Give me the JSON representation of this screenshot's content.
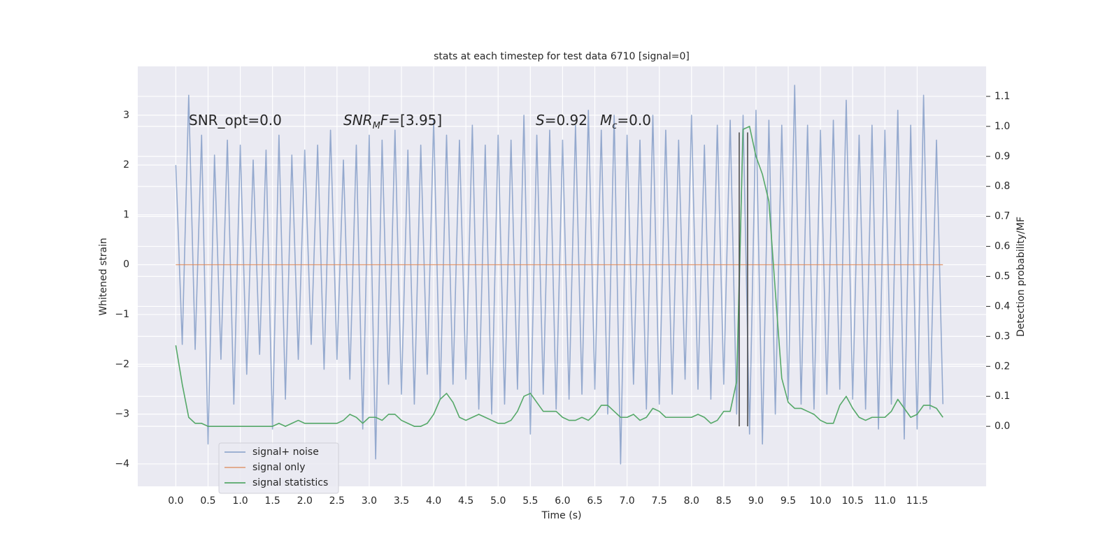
{
  "chart_data": {
    "type": "line",
    "title": "stats at each timestep for test data 6710 [signal=0]",
    "xlabel": "Time (s)",
    "ylabel": "Whitened strain",
    "y2label": "Detection probability/MF",
    "background": "#eaeaf2",
    "grid": true,
    "legend": "lower left",
    "xlim": [
      -0.59,
      12.57
    ],
    "ylim": [
      -4.45,
      3.98
    ],
    "y2lim": [
      -0.2,
      1.2
    ],
    "xticks": [
      {
        "value": 0,
        "label": "0.0"
      },
      {
        "value": 0.5,
        "label": "0.5"
      },
      {
        "value": 1,
        "label": "1.0"
      },
      {
        "value": 1.5,
        "label": "1.5"
      },
      {
        "value": 2,
        "label": "2.0"
      },
      {
        "value": 2.5,
        "label": "2.5"
      },
      {
        "value": 3,
        "label": "3.0"
      },
      {
        "value": 3.5,
        "label": "3.5"
      },
      {
        "value": 4,
        "label": "4.0"
      },
      {
        "value": 4.5,
        "label": "4.5"
      },
      {
        "value": 5,
        "label": "5.0"
      },
      {
        "value": 5.5,
        "label": "5.5"
      },
      {
        "value": 6,
        "label": "6.0"
      },
      {
        "value": 6.5,
        "label": "6.5"
      },
      {
        "value": 7,
        "label": "7.0"
      },
      {
        "value": 7.5,
        "label": "7.5"
      },
      {
        "value": 8,
        "label": "8.0"
      },
      {
        "value": 8.5,
        "label": "8.5"
      },
      {
        "value": 9,
        "label": "9.0"
      },
      {
        "value": 9.5,
        "label": "9.5"
      },
      {
        "value": 10,
        "label": "10.0"
      },
      {
        "value": 10.5,
        "label": "10.5"
      },
      {
        "value": 11,
        "label": "11.0"
      },
      {
        "value": 11.5,
        "label": "11.5"
      }
    ],
    "yticks": [
      {
        "value": -4,
        "label": "−4"
      },
      {
        "value": -3,
        "label": "−3"
      },
      {
        "value": -2,
        "label": "−2"
      },
      {
        "value": -1,
        "label": "−1"
      },
      0,
      1,
      2,
      3
    ],
    "y2ticks": [
      {
        "value": 0,
        "label": "0.0"
      },
      {
        "value": 0.1,
        "label": "0.1"
      },
      {
        "value": 0.2,
        "label": "0.2"
      },
      {
        "value": 0.3,
        "label": "0.3"
      },
      {
        "value": 0.4,
        "label": "0.4"
      },
      {
        "value": 0.5,
        "label": "0.5"
      },
      {
        "value": 0.6,
        "label": "0.6"
      },
      {
        "value": 0.7,
        "label": "0.7"
      },
      {
        "value": 0.8,
        "label": "0.8"
      },
      {
        "value": 0.9,
        "label": "0.9"
      },
      {
        "value": 1.0,
        "label": "1.0"
      },
      {
        "value": 1.1,
        "label": "1.1"
      }
    ],
    "x": [
      0,
      0.1,
      0.2,
      0.3,
      0.4,
      0.5,
      0.6,
      0.7,
      0.8,
      0.9,
      1,
      1.1,
      1.2,
      1.3,
      1.4,
      1.5,
      1.6,
      1.7,
      1.8,
      1.9,
      2,
      2.1,
      2.2,
      2.3,
      2.4,
      2.5,
      2.6,
      2.7,
      2.8,
      2.9,
      3,
      3.1,
      3.2,
      3.3,
      3.4,
      3.5,
      3.6,
      3.7,
      3.8,
      3.9,
      4,
      4.1,
      4.2,
      4.3,
      4.4,
      4.5,
      4.6,
      4.7,
      4.8,
      4.9,
      5,
      5.1,
      5.2,
      5.3,
      5.4,
      5.5,
      5.6,
      5.7,
      5.8,
      5.9,
      6,
      6.1,
      6.2,
      6.3,
      6.4,
      6.5,
      6.6,
      6.7,
      6.8,
      6.9,
      7,
      7.1,
      7.2,
      7.3,
      7.4,
      7.5,
      7.6,
      7.7,
      7.8,
      7.9,
      8,
      8.1,
      8.2,
      8.3,
      8.4,
      8.5,
      8.6,
      8.7,
      8.8,
      8.9,
      9,
      9.1,
      9.2,
      9.3,
      9.4,
      9.5,
      9.6,
      9.7,
      9.8,
      9.9,
      10,
      10.1,
      10.2,
      10.3,
      10.4,
      10.5,
      10.6,
      10.7,
      10.8,
      10.9,
      11,
      11.1,
      11.2,
      11.3,
      11.4,
      11.5,
      11.6,
      11.7,
      11.8,
      11.9
    ],
    "series": [
      {
        "name": "signal+ noise",
        "color": "#4c72b0",
        "opacity": 0.55,
        "axis": "y",
        "values": [
          2.0,
          -1.6,
          3.4,
          -1.7,
          2.6,
          -3.6,
          2.2,
          -1.9,
          2.5,
          -2.8,
          2.4,
          -2.2,
          2.1,
          -1.8,
          2.3,
          -3.3,
          2.6,
          -2.7,
          2.2,
          -1.9,
          2.3,
          -1.6,
          2.4,
          -2.1,
          2.7,
          -1.9,
          2.1,
          -2.3,
          2.4,
          -3.3,
          2.6,
          -3.9,
          2.5,
          -2.4,
          2.7,
          -2.6,
          2.3,
          -2.8,
          2.4,
          -2.2,
          2.9,
          -2.7,
          2.6,
          -2.4,
          2.5,
          -2.3,
          2.8,
          -2.9,
          2.4,
          -3.0,
          2.6,
          -2.8,
          2.5,
          -2.5,
          3.0,
          -3.4,
          2.6,
          -2.6,
          2.7,
          -2.9,
          2.5,
          -2.7,
          2.8,
          -2.6,
          3.1,
          -2.5,
          2.7,
          -3.0,
          3.0,
          -4.0,
          2.6,
          -2.4,
          2.5,
          -2.9,
          3.0,
          -2.8,
          2.7,
          -2.6,
          2.5,
          -2.3,
          3.0,
          -2.5,
          2.4,
          -2.7,
          2.8,
          -2.4,
          2.9,
          -3.0,
          3.0,
          -3.4,
          3.1,
          -3.6,
          2.9,
          -3.0,
          2.8,
          -2.7,
          3.6,
          -2.8,
          2.8,
          -2.9,
          2.7,
          -2.6,
          2.9,
          -2.5,
          3.3,
          -2.7,
          2.6,
          -2.9,
          2.8,
          -3.3,
          2.7,
          -2.8,
          3.1,
          -3.5,
          2.8,
          -3.3,
          3.4,
          -2.9,
          2.5,
          -2.8
        ]
      },
      {
        "name": "signal only",
        "color": "#dd8452",
        "opacity": 0.7,
        "axis": "y",
        "values": [
          0,
          0,
          0,
          0,
          0,
          0,
          0,
          0,
          0,
          0,
          0,
          0,
          0,
          0,
          0,
          0,
          0,
          0,
          0,
          0,
          0,
          0,
          0,
          0,
          0,
          0,
          0,
          0,
          0,
          0,
          0,
          0,
          0,
          0,
          0,
          0,
          0,
          0,
          0,
          0,
          0,
          0,
          0,
          0,
          0,
          0,
          0,
          0,
          0,
          0,
          0,
          0,
          0,
          0,
          0,
          0,
          0,
          0,
          0,
          0,
          0,
          0,
          0,
          0,
          0,
          0,
          0,
          0,
          0,
          0,
          0,
          0,
          0,
          0,
          0,
          0,
          0,
          0,
          0,
          0,
          0,
          0,
          0,
          0,
          0,
          0,
          0,
          0,
          0,
          0,
          0,
          0,
          0,
          0,
          0,
          0,
          0,
          0,
          0,
          0,
          0,
          0,
          0,
          0,
          0,
          0,
          0,
          0,
          0,
          0,
          0,
          0,
          0,
          0,
          0,
          0,
          0,
          0,
          0,
          0
        ]
      },
      {
        "name": "signal statistics",
        "color": "#55a868",
        "opacity": 1,
        "axis": "y2",
        "values": [
          0.27,
          0.14,
          0.03,
          0.01,
          0.01,
          0.0,
          0.0,
          0.0,
          0.0,
          0.0,
          0.0,
          0.0,
          0.0,
          0.0,
          0.0,
          0.0,
          0.01,
          0.0,
          0.01,
          0.02,
          0.01,
          0.01,
          0.01,
          0.01,
          0.01,
          0.01,
          0.02,
          0.04,
          0.03,
          0.01,
          0.03,
          0.03,
          0.02,
          0.04,
          0.04,
          0.02,
          0.01,
          0.0,
          0.0,
          0.01,
          0.04,
          0.09,
          0.11,
          0.08,
          0.03,
          0.02,
          0.03,
          0.04,
          0.03,
          0.02,
          0.01,
          0.01,
          0.02,
          0.05,
          0.1,
          0.11,
          0.08,
          0.05,
          0.05,
          0.05,
          0.03,
          0.02,
          0.02,
          0.03,
          0.02,
          0.04,
          0.07,
          0.07,
          0.05,
          0.03,
          0.03,
          0.04,
          0.02,
          0.03,
          0.06,
          0.05,
          0.03,
          0.03,
          0.03,
          0.03,
          0.03,
          0.04,
          0.03,
          0.01,
          0.02,
          0.05,
          0.05,
          0.15,
          0.99,
          1.0,
          0.9,
          0.84,
          0.75,
          0.45,
          0.16,
          0.08,
          0.06,
          0.06,
          0.05,
          0.04,
          0.02,
          0.01,
          0.01,
          0.07,
          0.1,
          0.06,
          0.03,
          0.02,
          0.03,
          0.03,
          0.03,
          0.05,
          0.09,
          0.06,
          0.03,
          0.04,
          0.07,
          0.07,
          0.06,
          0.03
        ]
      }
    ],
    "vlines": [
      {
        "x": 8.74,
        "y2min": 0,
        "y2max": 0.98,
        "color": "#444444"
      },
      {
        "x": 8.87,
        "y2min": 0,
        "y2max": 0.98,
        "color": "#444444"
      }
    ],
    "annotations": [
      {
        "parts": [
          {
            "t": "SNR_opt=0.0"
          }
        ]
      },
      {
        "parts": [
          {
            "t": "SNR",
            "italic": true
          },
          {
            "t": "M",
            "italic": true,
            "sub": true
          },
          {
            "t": "F",
            "italic": true
          },
          {
            "t": "=[3.95]"
          }
        ]
      },
      {
        "parts": [
          {
            "t": "S",
            "italic": true
          },
          {
            "t": "=0.92"
          }
        ]
      },
      {
        "parts": [
          {
            "t": "M",
            "italic": true
          },
          {
            "t": "c",
            "italic": true,
            "sub": true
          },
          {
            "t": "=0.0"
          }
        ]
      }
    ]
  }
}
